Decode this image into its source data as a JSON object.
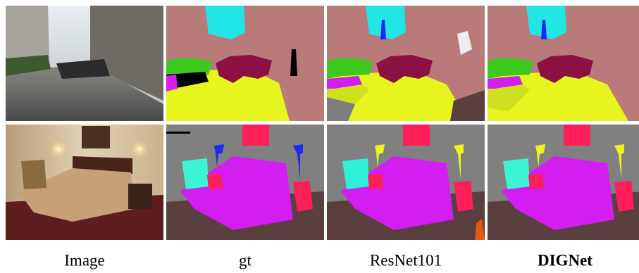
{
  "columns": [
    {
      "label": "Image"
    },
    {
      "label": "gt"
    },
    {
      "label": "ResNet101"
    },
    {
      "label": "DIGNet"
    }
  ]
}
